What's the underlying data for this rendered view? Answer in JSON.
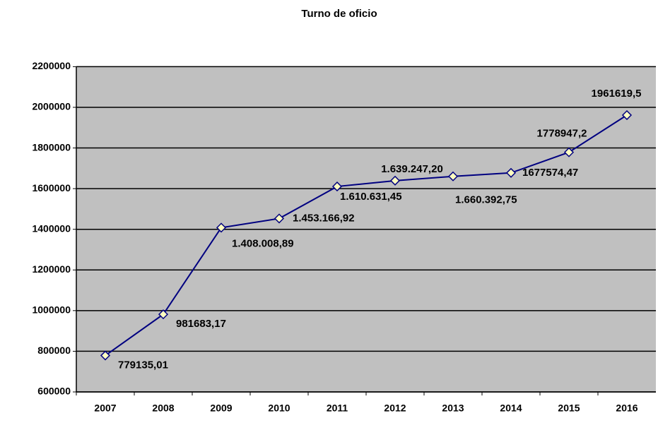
{
  "chart_data": {
    "type": "line",
    "title": "Turno de oficio",
    "categories": [
      "2007",
      "2008",
      "2009",
      "2010",
      "2011",
      "2012",
      "2013",
      "2014",
      "2015",
      "2016"
    ],
    "series": [
      {
        "name": "Turno de oficio",
        "color": "#000080",
        "values": [
          779135.01,
          981683.17,
          1408008.89,
          1453166.92,
          1610631.45,
          1639247.2,
          1660392.75,
          1677574.47,
          1778947.2,
          1961619.5
        ],
        "value_labels": [
          "779135,01",
          "981683,17",
          "1.408.008,89",
          "1.453.166,92",
          "1.610.631,45",
          "1.639.247,20",
          "1.660.392,75",
          "1677574,47",
          "1778947,2",
          "1961619,5"
        ]
      }
    ],
    "ylim": [
      600000,
      2200000
    ],
    "yticks": [
      600000,
      800000,
      1000000,
      1200000,
      1400000,
      1600000,
      1800000,
      2000000,
      2200000
    ],
    "grid": true
  }
}
